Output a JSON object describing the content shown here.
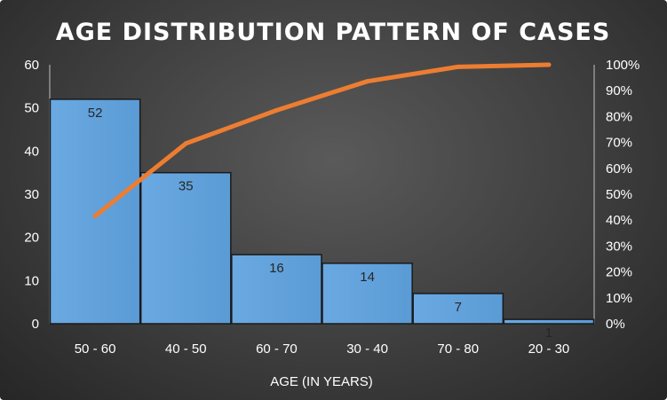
{
  "chart_data": {
    "type": "bar",
    "title": "AGE DISTRIBUTION PATTERN OF CASES",
    "xlabel": "AGE (IN YEARS)",
    "ylabel": "",
    "categories": [
      "50 - 60",
      "40 - 50",
      "60 - 70",
      "30 - 40",
      "70 - 80",
      "20 - 30"
    ],
    "values": [
      52,
      35,
      16,
      14,
      7,
      1
    ],
    "data_labels": [
      "52",
      "35",
      "16",
      "14",
      "7",
      "1"
    ],
    "ylim": [
      0,
      60
    ],
    "y_ticks": [
      "0",
      "10",
      "20",
      "30",
      "40",
      "50",
      "60"
    ],
    "y2lim": [
      0,
      100
    ],
    "y2_ticks": [
      "0%",
      "10%",
      "20%",
      "30%",
      "40%",
      "50%",
      "60%",
      "70%",
      "80%",
      "90%",
      "100%"
    ],
    "cumulative_line": {
      "type": "line",
      "axis": "secondary",
      "values": [
        41.6,
        69.6,
        82.4,
        93.6,
        99.2,
        100
      ]
    },
    "grid": false,
    "legend": "none",
    "colors": {
      "bar": "#5b9bd5",
      "bar_stroke": "#1a1a1a",
      "line": "#ed7d31",
      "text": "#ffffff",
      "data_label": "#262626"
    }
  }
}
